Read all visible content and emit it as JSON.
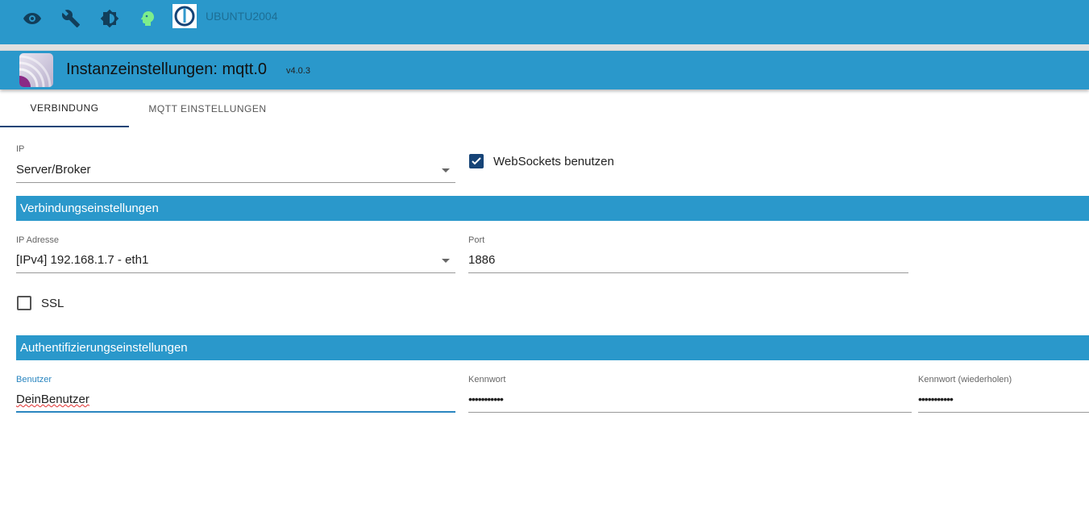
{
  "topbar": {
    "icons": [
      "eye-icon",
      "wrench-icon",
      "brightness-icon",
      "head-icon"
    ],
    "host": "UBUNTU2004"
  },
  "header": {
    "title": "Instanzeinstellungen: mqtt.0",
    "version": "v4.0.3"
  },
  "tabs": [
    {
      "label": "VERBINDUNG",
      "active": true
    },
    {
      "label": "MQTT EINSTELLUNGEN",
      "active": false
    }
  ],
  "form": {
    "ip_label": "IP",
    "ip_value": "Server/Broker",
    "websockets": {
      "label": "WebSockets benutzen",
      "checked": true
    },
    "section1": "Verbindungseinstellungen",
    "ip_address_label": "IP Adresse",
    "ip_address_value": "[IPv4] 192.168.1.7 - eth1",
    "port_label": "Port",
    "port_value": "1886",
    "ssl": {
      "label": "SSL",
      "checked": false
    },
    "section2": "Authentifizierungseinstellungen",
    "user_label": "Benutzer",
    "user_value": "DeinBenutzer",
    "password_label": "Kennwort",
    "password_value": "•••••••••••",
    "password_repeat_label": "Kennwort (wiederholen)",
    "password_repeat_value": "•••••••••••"
  },
  "colors": {
    "primary": "#2a98cb",
    "accent": "#164477"
  }
}
